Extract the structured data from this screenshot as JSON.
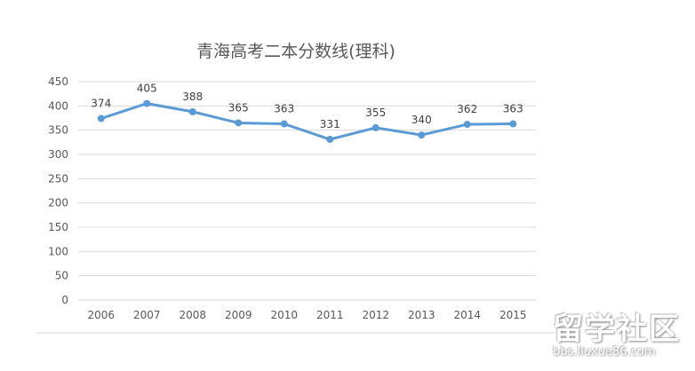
{
  "chart_data": {
    "type": "line",
    "title": "青海高考二本分数线(理科)",
    "categories": [
      "2006",
      "2007",
      "2008",
      "2009",
      "2010",
      "2011",
      "2012",
      "2013",
      "2014",
      "2015"
    ],
    "series": [
      {
        "values": [
          374,
          405,
          388,
          365,
          363,
          331,
          355,
          340,
          362,
          363
        ],
        "color": "#5b9bd5"
      }
    ],
    "ylim": [
      0,
      450
    ],
    "yticks": [
      0,
      50,
      100,
      150,
      200,
      250,
      300,
      350,
      400,
      450
    ],
    "grid": true,
    "data_labels": true,
    "legend": "none"
  },
  "watermark": {
    "logo": "留学社区",
    "url": "bbs.liuxue86.com"
  }
}
